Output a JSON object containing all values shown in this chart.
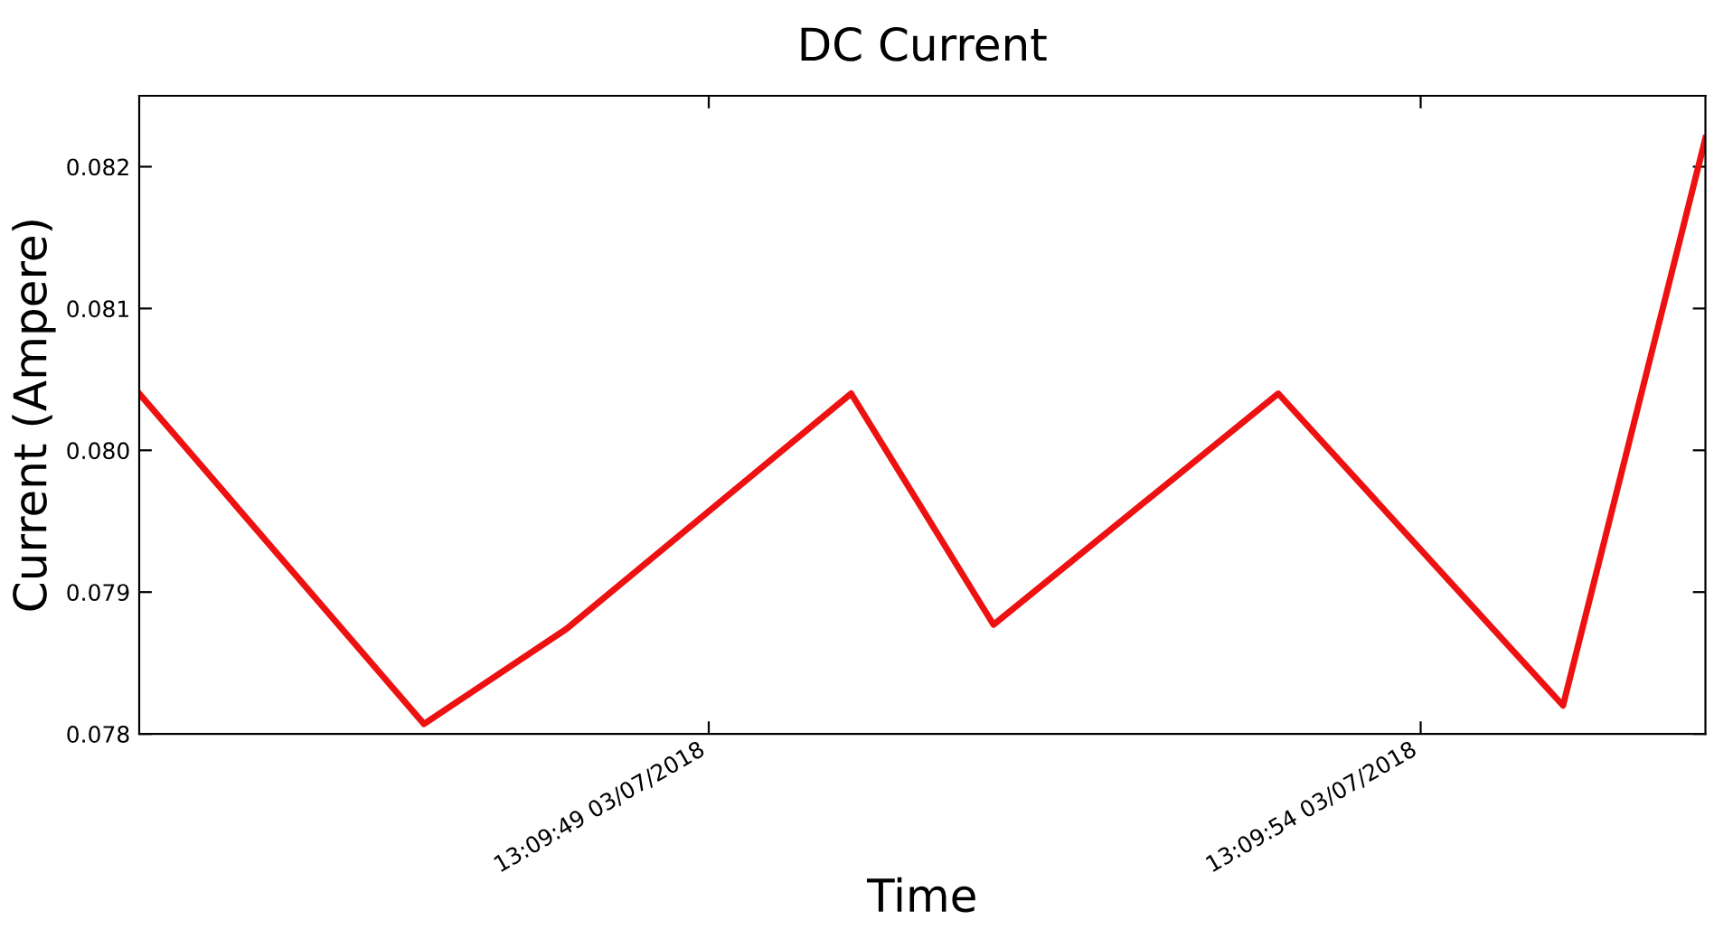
{
  "chart_data": {
    "type": "line",
    "title": "DC Current",
    "xlabel": "Time",
    "ylabel": "Current (Ampere)",
    "x": [
      "2018-07-03T13:09:45",
      "2018-07-03T13:09:47",
      "2018-07-03T13:09:48",
      "2018-07-03T13:09:50",
      "2018-07-03T13:09:51",
      "2018-07-03T13:09:53",
      "2018-07-03T13:09:55",
      "2018-07-03T13:09:56"
    ],
    "series": [
      {
        "color": "#ee1111",
        "values": [
          0.0804,
          0.07807,
          0.07874,
          0.0804,
          0.07877,
          0.0804,
          0.0782,
          0.0822
        ]
      }
    ],
    "xlim": [
      "2018-07-03T13:09:45",
      "2018-07-03T13:09:56"
    ],
    "xticks": [
      {
        "value": "2018-07-03T13:09:49",
        "label": "13:09:49 03/07/2018"
      },
      {
        "value": "2018-07-03T13:09:54",
        "label": "13:09:54 03/07/2018"
      }
    ],
    "ylim": [
      0.078,
      0.0825
    ],
    "yticks": [
      0.078,
      0.079,
      {
        "value": 0.08,
        "label": "0.080"
      },
      0.081,
      0.082
    ],
    "grid": false,
    "legend": false,
    "marker": "none",
    "line_style": "solid"
  }
}
